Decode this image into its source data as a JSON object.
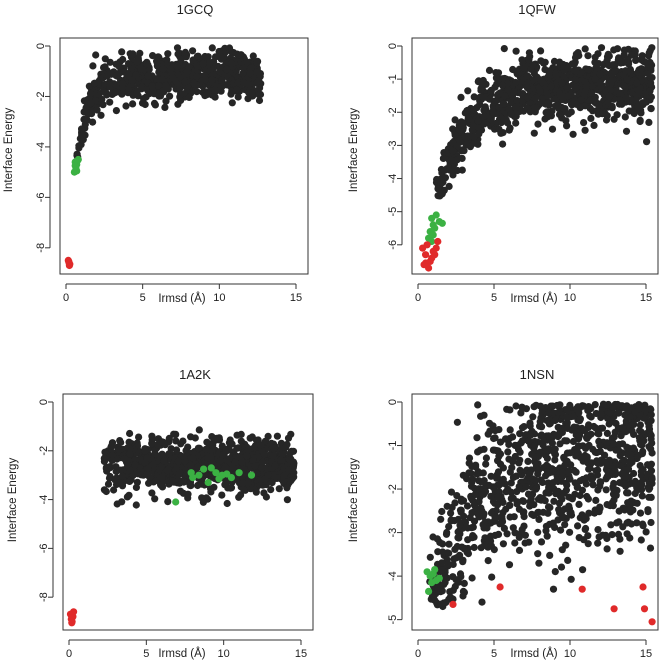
{
  "colors": {
    "decoy": "#262626",
    "near_native": "#3bb143",
    "native": "#e02a2a",
    "axis": "#333333"
  },
  "chart_data": [
    {
      "type": "scatter",
      "title": "1GCQ",
      "xlabel": "Irmsd (Å)",
      "ylabel": "Interface Energy",
      "xlim": [
        0,
        15
      ],
      "ylim": [
        -8.8,
        0
      ],
      "xticks": [
        0,
        5,
        10,
        15
      ],
      "yticks": [
        -8,
        -6,
        -4,
        -2,
        0
      ],
      "grid": false,
      "legend": "none",
      "series": [
        {
          "name": "decoys",
          "color_key": "decoy",
          "cloud": {
            "seed": 11,
            "n": 700,
            "x_range": [
              0.7,
              12.7
            ],
            "y_cap": -0.05,
            "floor": -4.4,
            "rise_scale": 0.9,
            "trend": "saturating"
          }
        },
        {
          "name": "near-native",
          "color_key": "near_native",
          "points": [
            [
              0.6,
              -4.6
            ],
            [
              0.7,
              -4.7
            ],
            [
              0.65,
              -4.85
            ],
            [
              0.75,
              -4.55
            ],
            [
              0.55,
              -5.0
            ],
            [
              0.8,
              -4.5
            ],
            [
              0.7,
              -4.95
            ],
            [
              0.6,
              -4.75
            ]
          ]
        },
        {
          "name": "native",
          "color_key": "native",
          "points": [
            [
              0.15,
              -8.5
            ],
            [
              0.2,
              -8.6
            ],
            [
              0.25,
              -8.65
            ],
            [
              0.18,
              -8.55
            ],
            [
              0.22,
              -8.7
            ]
          ]
        }
      ]
    },
    {
      "type": "scatter",
      "title": "1QFW",
      "xlabel": "Irmsd (Å)",
      "ylabel": "Interface Energy",
      "xlim": [
        0,
        15
      ],
      "ylim": [
        -6.7,
        0
      ],
      "xticks": [
        0,
        5,
        10,
        15
      ],
      "yticks": [
        -6,
        -5,
        -4,
        -3,
        -2,
        -1,
        0
      ],
      "grid": false,
      "legend": "none",
      "series": [
        {
          "name": "decoys",
          "color_key": "decoy",
          "cloud": {
            "seed": 23,
            "n": 1000,
            "x_range": [
              1.2,
              15.4
            ],
            "y_cap": -0.05,
            "floor": -4.8,
            "rise_scale": 2.0,
            "trend": "saturating"
          }
        },
        {
          "name": "near-native",
          "color_key": "near_native",
          "points": [
            [
              0.9,
              -5.2
            ],
            [
              1.0,
              -5.4
            ],
            [
              1.2,
              -5.1
            ],
            [
              0.8,
              -5.6
            ],
            [
              1.1,
              -5.5
            ],
            [
              0.7,
              -5.8
            ],
            [
              1.0,
              -5.7
            ],
            [
              1.4,
              -5.3
            ],
            [
              0.9,
              -5.9
            ],
            [
              1.6,
              -5.35
            ]
          ]
        },
        {
          "name": "native",
          "color_key": "native",
          "points": [
            [
              0.3,
              -6.1
            ],
            [
              0.5,
              -6.3
            ],
            [
              0.6,
              -6.0
            ],
            [
              0.8,
              -6.5
            ],
            [
              1.0,
              -6.2
            ],
            [
              1.2,
              -6.1
            ],
            [
              0.4,
              -6.6
            ],
            [
              0.7,
              -6.7
            ],
            [
              1.3,
              -5.9
            ],
            [
              0.9,
              -6.4
            ],
            [
              0.5,
              -6.55
            ],
            [
              1.1,
              -6.3
            ]
          ]
        }
      ]
    },
    {
      "type": "scatter",
      "title": "1A2K",
      "xlabel": "Irmsd (Å)",
      "ylabel": "Interface Energy",
      "xlim": [
        0,
        15
      ],
      "ylim": [
        -9.1,
        0
      ],
      "xticks": [
        0,
        5,
        10,
        15
      ],
      "yticks": [
        -8,
        -6,
        -4,
        -2,
        0
      ],
      "grid": false,
      "legend": "none",
      "series": [
        {
          "name": "decoys",
          "color_key": "decoy",
          "cloud": {
            "seed": 37,
            "n": 900,
            "x_range": [
              2.2,
              14.6
            ],
            "y_center": -2.4,
            "y_spread": 1.0,
            "y_cap": -0.2,
            "floor": -6.0,
            "trend": "band"
          }
        },
        {
          "name": "near-native",
          "color_key": "near_native",
          "points": [
            [
              6.9,
              -4.1
            ],
            [
              7.9,
              -2.9
            ],
            [
              8.4,
              -3.0
            ],
            [
              8.7,
              -2.75
            ],
            [
              9.0,
              -3.3
            ],
            [
              9.5,
              -2.9
            ],
            [
              9.9,
              -3.0
            ],
            [
              10.5,
              -3.1
            ],
            [
              11.0,
              -2.9
            ],
            [
              11.8,
              -3.0
            ],
            [
              9.2,
              -2.7
            ],
            [
              8.0,
              -3.1
            ],
            [
              10.2,
              -2.95
            ],
            [
              9.7,
              -3.15
            ]
          ]
        },
        {
          "name": "native",
          "color_key": "native",
          "points": [
            [
              0.1,
              -8.7
            ],
            [
              0.15,
              -8.9
            ],
            [
              0.2,
              -9.0
            ],
            [
              0.25,
              -8.8
            ],
            [
              0.3,
              -8.6
            ],
            [
              0.18,
              -9.05
            ]
          ]
        }
      ]
    },
    {
      "type": "scatter",
      "title": "1NSN",
      "xlabel": "Irmsd (Å)",
      "ylabel": "Interface Energy",
      "xlim": [
        0,
        15
      ],
      "ylim": [
        -5.1,
        0
      ],
      "xticks": [
        0,
        5,
        10,
        15
      ],
      "yticks": [
        -5,
        -4,
        -3,
        -2,
        -1,
        0
      ],
      "grid": false,
      "legend": "none",
      "series": [
        {
          "name": "decoys",
          "color_key": "decoy",
          "cloud": {
            "seed": 51,
            "n": 1000,
            "x_range": [
              0.7,
              15.4
            ],
            "y_cap": -0.05,
            "floor": -4.7,
            "rise_scale": 3.0,
            "trend": "saturating",
            "spread": 2.1
          }
        },
        {
          "name": "near-native",
          "color_key": "near_native",
          "points": [
            [
              0.6,
              -3.9
            ],
            [
              0.8,
              -4.0
            ],
            [
              1.0,
              -3.95
            ],
            [
              1.2,
              -4.1
            ],
            [
              0.7,
              -4.35
            ],
            [
              1.4,
              -4.05
            ],
            [
              0.9,
              -4.15
            ],
            [
              1.1,
              -3.85
            ]
          ]
        },
        {
          "name": "native",
          "color_key": "native",
          "points": [
            [
              2.3,
              -4.65
            ],
            [
              5.4,
              -4.25
            ],
            [
              10.8,
              -4.3
            ],
            [
              12.9,
              -4.75
            ],
            [
              14.8,
              -4.25
            ],
            [
              14.9,
              -4.75
            ],
            [
              15.4,
              -5.05
            ]
          ]
        }
      ]
    }
  ]
}
